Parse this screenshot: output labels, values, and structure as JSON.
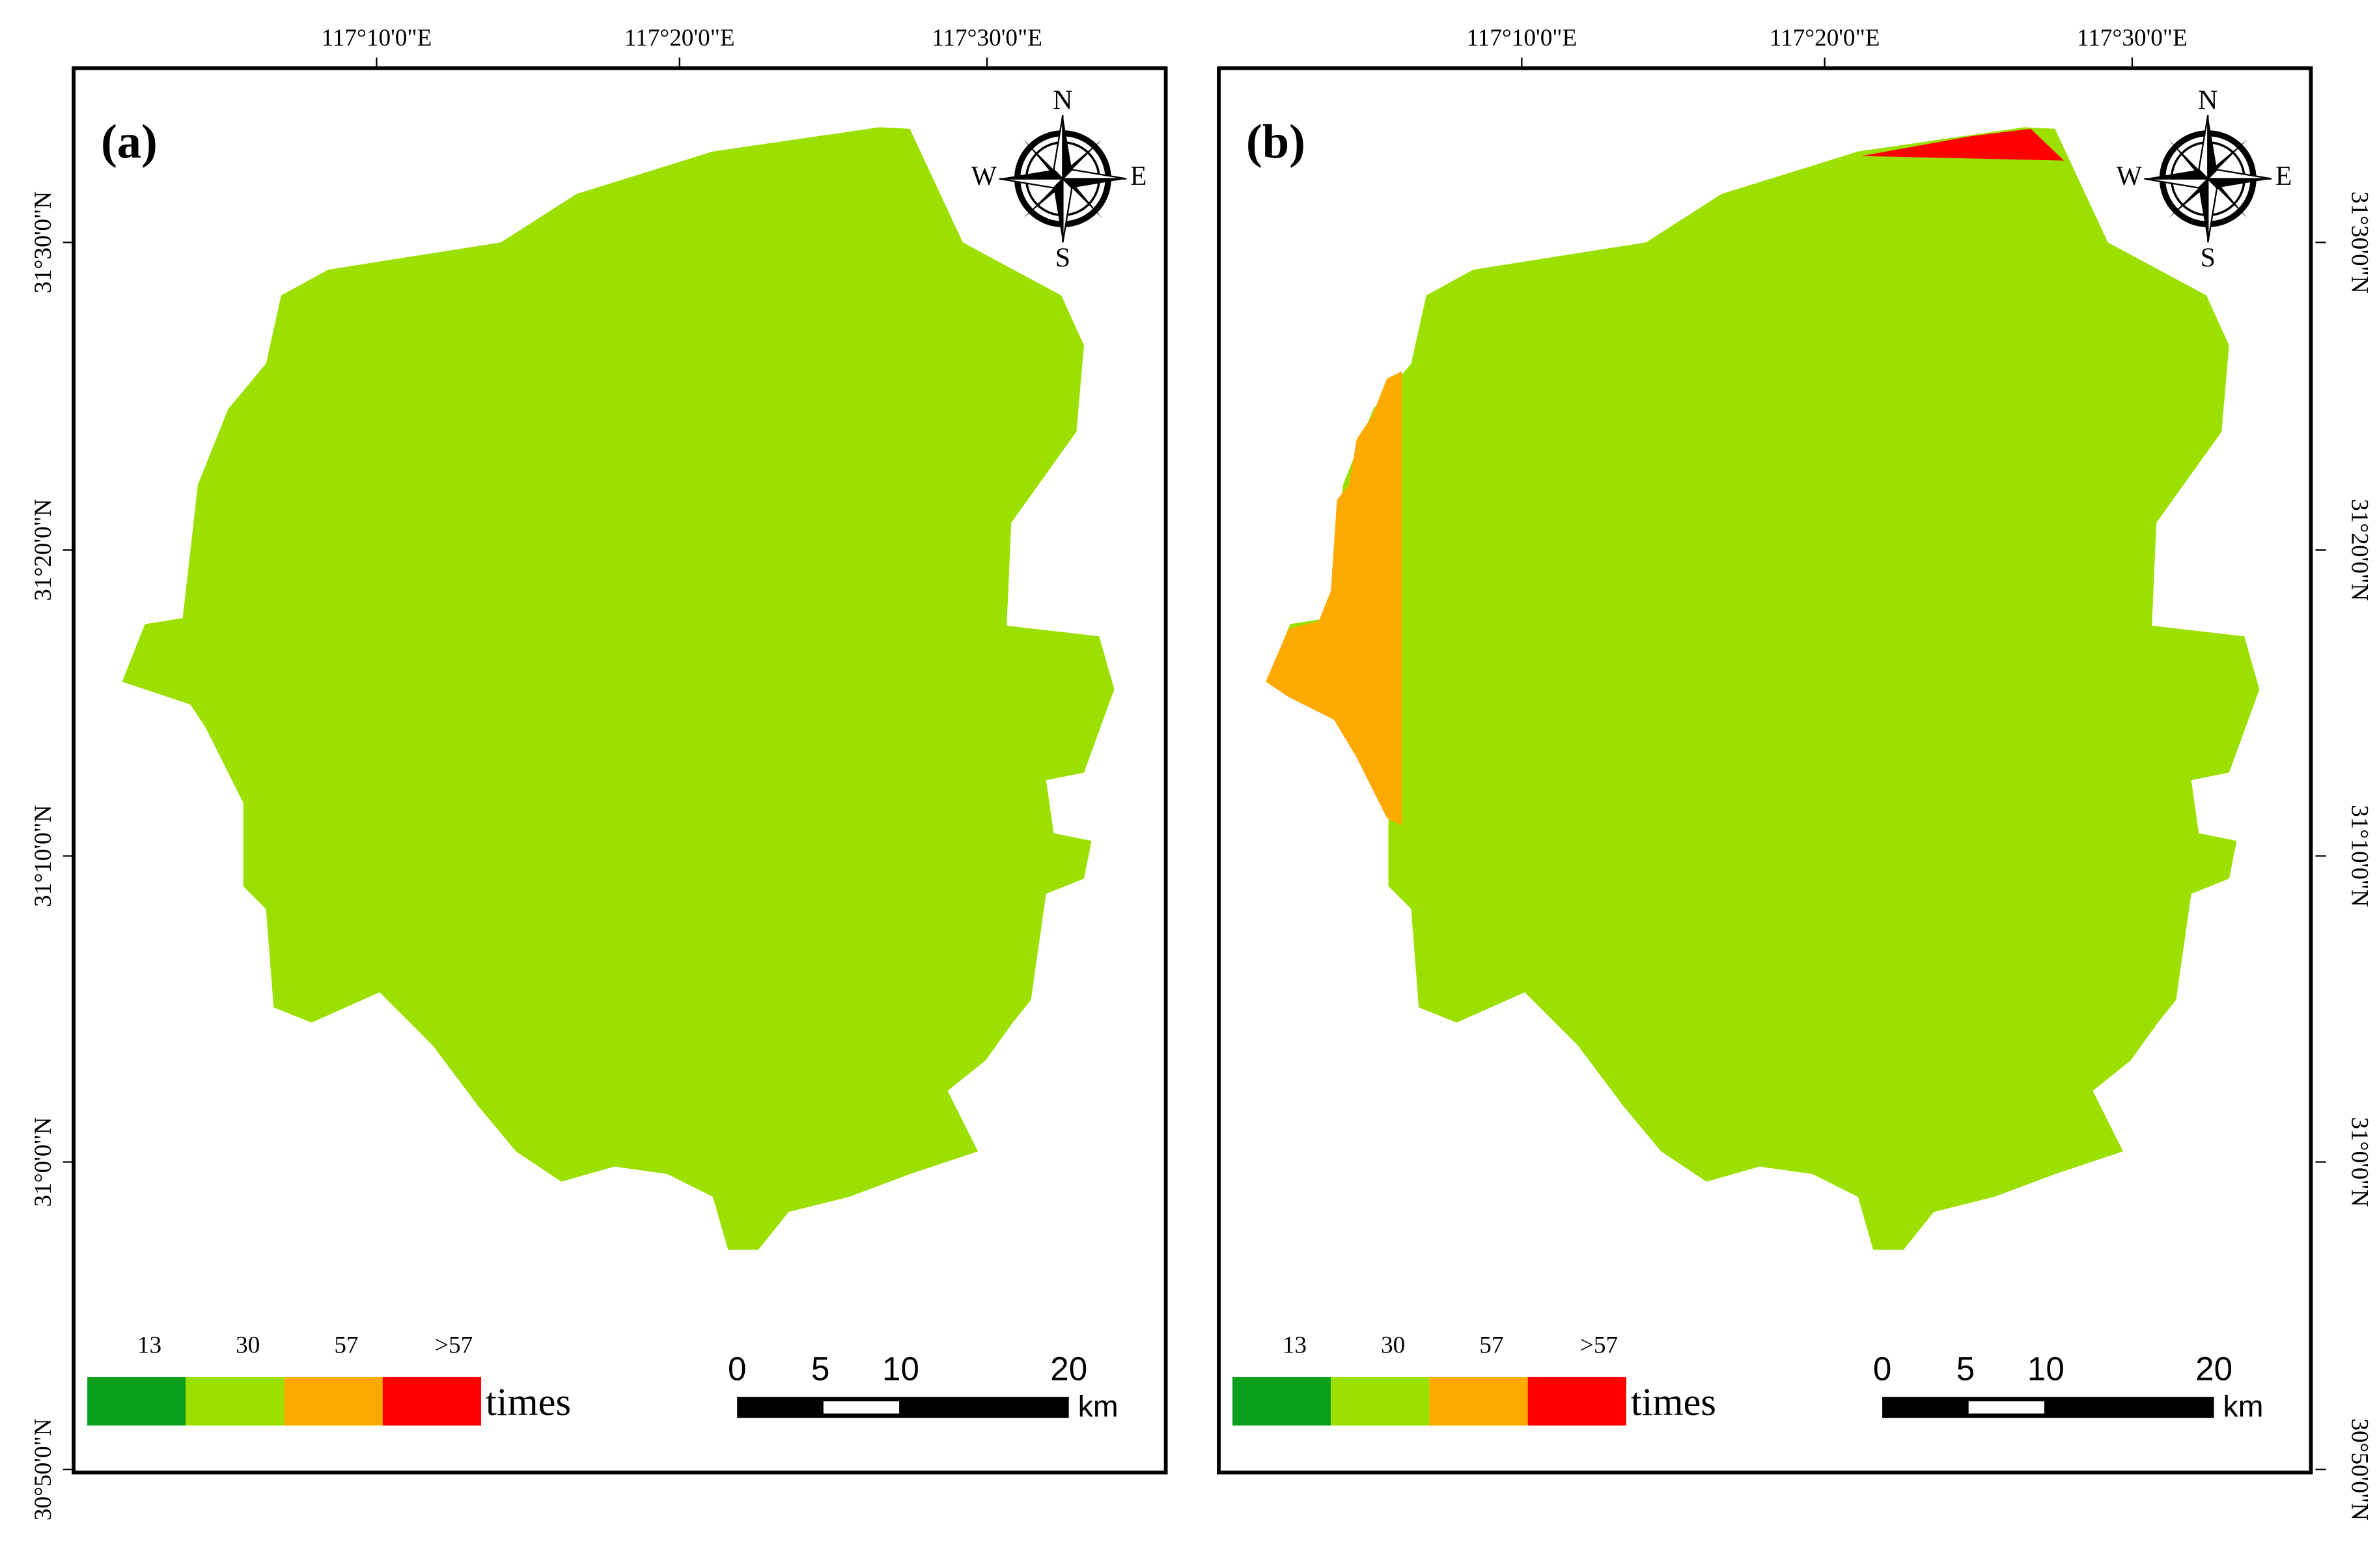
{
  "panels": [
    {
      "label": "(a)"
    },
    {
      "label": "(b)"
    }
  ],
  "longitude_labels": [
    "117°10'0\"E",
    "117°20'0\"E",
    "117°30'0\"E"
  ],
  "latitude_labels": [
    "31°30'0\"N",
    "31°20'0\"N",
    "31°10'0\"N",
    "31°0'0\"N",
    "30°50'0\"N"
  ],
  "legend": {
    "breaks": [
      "13",
      "30",
      "57",
      ">57"
    ],
    "unit": "times"
  },
  "scale_bar": {
    "ticks": [
      "0",
      "5",
      "10",
      "20"
    ],
    "unit": "km"
  },
  "compass": {
    "north": "N",
    "south": "S",
    "west": "W",
    "east": "E"
  }
}
